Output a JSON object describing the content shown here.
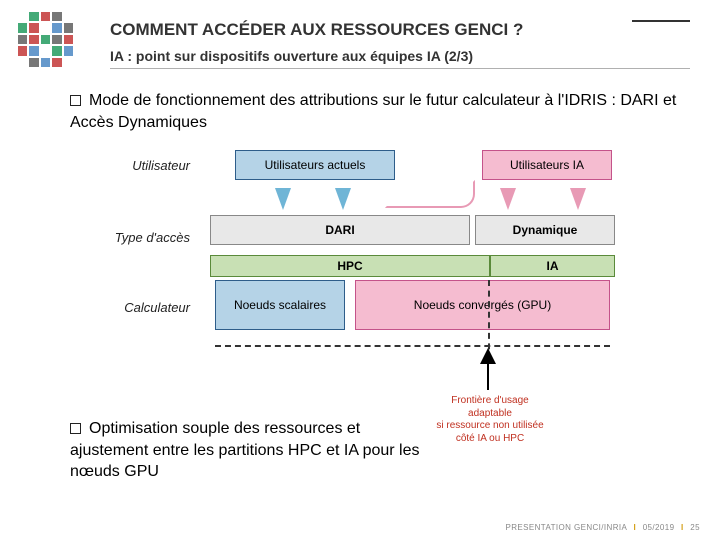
{
  "header": {
    "title": "COMMENT ACCÉDER AUX RESSOURCES GENCI ?",
    "subtitle": "IA : point sur dispositifs ouverture aux équipes IA (2/3)"
  },
  "bullets": {
    "b1": "Mode de fonctionnement des attributions sur le futur calculateur à l'IDRIS : DARI et Accès Dynamiques",
    "b2": "Optimisation souple des ressources et ajustement entre les partitions HPC et IA pour les nœuds GPU"
  },
  "rowlabels": {
    "r1": "Utilisateur",
    "r2": "Type d'accès",
    "r3": "Calculateur"
  },
  "boxes": {
    "users_current": "Utilisateurs actuels",
    "users_ia": "Utilisateurs IA",
    "dari": "DARI",
    "dyn": "Dynamique",
    "hpc": "HPC",
    "ia": "IA",
    "scalar": "Noeuds scalaires",
    "gpu": "Noeuds convergés (GPU)"
  },
  "caption": {
    "l1": "Frontière d'usage",
    "l2": "adaptable",
    "l3": "si ressource non utilisée",
    "l4": "côté IA ou HPC"
  },
  "colors": {
    "blue_fill": "#b5d3e7",
    "blue_border": "#2e5d8a",
    "pink_fill": "#f5bcd0",
    "pink_border": "#c4538a",
    "green_fill": "#c8e0b4",
    "green_border": "#5a8a3a",
    "gray_fill": "#e8e8e8",
    "gray_border": "#888",
    "arrow_blue": "#6fb5d6",
    "arrow_pink": "#e89ab5"
  },
  "logo_pattern": [
    [
      "",
      "#4a7",
      "#c55",
      "#777",
      ""
    ],
    [
      "#4a7",
      "#c55",
      "",
      "#69c",
      "#777"
    ],
    [
      "#777",
      "#c55",
      "#4a7",
      "#777",
      "#c55"
    ],
    [
      "#c55",
      "#69c",
      "",
      "#4a7",
      "#69c"
    ],
    [
      "",
      "#777",
      "#69c",
      "#c55",
      ""
    ]
  ],
  "footer": {
    "a": "PRESENTATION GENCI/INRIA",
    "b": "05/2019",
    "c": "25"
  }
}
